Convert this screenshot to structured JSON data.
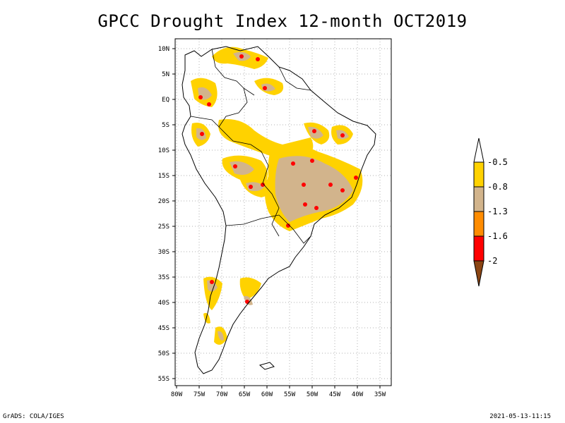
{
  "title": "GPCC Drought Index 12-month OCT2019",
  "footer": {
    "left": "GrADS: COLA/IGES",
    "right": "2021-05-13-11:15"
  },
  "axes": {
    "lat_labels": [
      "10N",
      "5N",
      "EQ",
      "5S",
      "10S",
      "15S",
      "20S",
      "25S",
      "30S",
      "35S",
      "40S",
      "45S",
      "50S",
      "55S"
    ],
    "lon_labels": [
      "80W",
      "75W",
      "70W",
      "65W",
      "60W",
      "55W",
      "50W",
      "45W",
      "40W",
      "35W"
    ]
  },
  "colorbar": {
    "labels": [
      "-0.5",
      "-0.8",
      "-1.3",
      "-1.6",
      "-2"
    ],
    "colors": [
      "#ffff00",
      "#ffd200",
      "#d2b48c",
      "#ff8c00",
      "#ff0000",
      "#8b4513"
    ]
  },
  "colors": {
    "land_outline": "#000000",
    "frame": "#000000",
    "grid": "#b0b0b0"
  }
}
